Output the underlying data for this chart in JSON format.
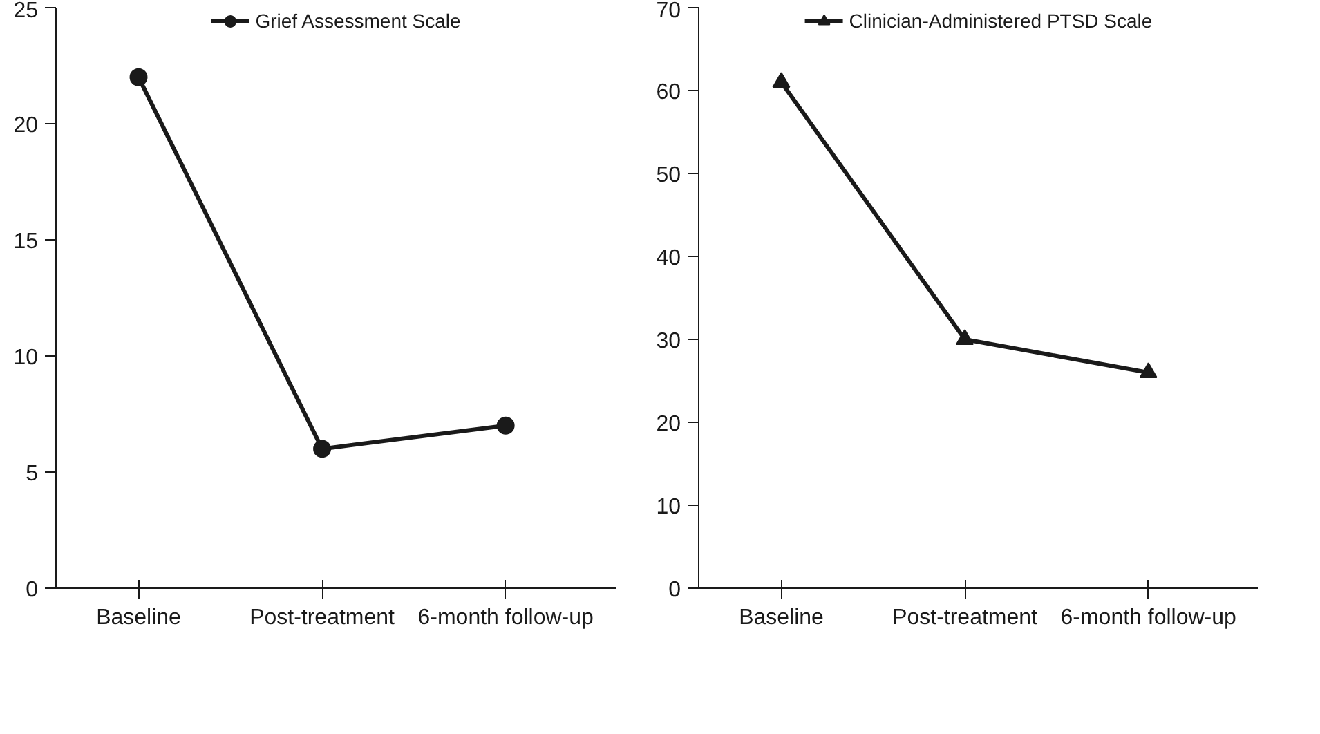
{
  "chart_data": [
    {
      "type": "line",
      "categories": [
        "Baseline",
        "Post-treatment",
        "6-month follow-up"
      ],
      "series": [
        {
          "name": "Grief Assessment Scale",
          "color": "#1a1a1a",
          "values": [
            22,
            6,
            7
          ]
        }
      ],
      "ylim": [
        0,
        25
      ],
      "yticks": [
        0,
        5,
        10,
        15,
        20,
        25
      ],
      "marker": "circle",
      "legend": "top",
      "grid": false
    },
    {
      "type": "line",
      "categories": [
        "Baseline",
        "Post-treatment",
        "6-month follow-up"
      ],
      "series": [
        {
          "name": "Clinician-Administered PTSD Scale",
          "color": "#1a1a1a",
          "values": [
            61,
            30,
            26
          ]
        }
      ],
      "ylim": [
        0,
        70
      ],
      "yticks": [
        0,
        10,
        20,
        30,
        40,
        50,
        60,
        70
      ],
      "marker": "triangle",
      "legend": "top",
      "grid": false
    }
  ]
}
